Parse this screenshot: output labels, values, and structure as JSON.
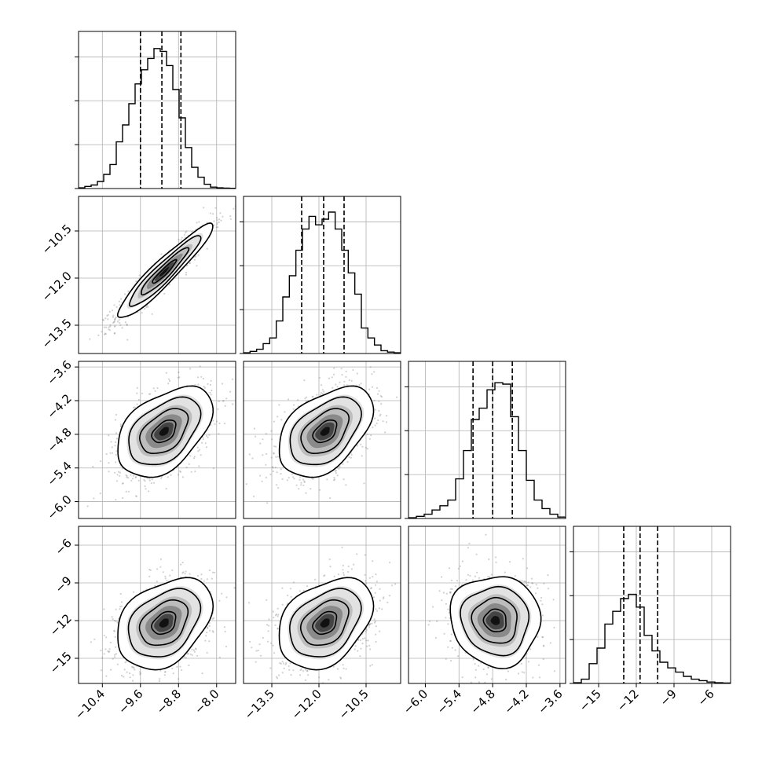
{
  "chart_data": {
    "type": "corner",
    "grid": true,
    "parameters": [
      {
        "xlim": [
          -10.9,
          -7.6
        ],
        "ticks": [
          -10.4,
          -9.6,
          -8.8,
          -8.0
        ],
        "tick_labels": [
          "−10.4",
          "−9.6",
          "−8.8",
          "−8.0"
        ],
        "quantiles": [
          -9.6,
          -9.15,
          -8.75
        ],
        "hist_bins": [
          0.5,
          1.5,
          2.5,
          5,
          10,
          17,
          33,
          45,
          60,
          74,
          84,
          92,
          99,
          97,
          87,
          70,
          50,
          29,
          15,
          8,
          3,
          1,
          0.5,
          0.3,
          0.2
        ]
      },
      {
        "xlim": [
          -14.4,
          -9.4
        ],
        "ticks": [
          -13.5,
          -12.0,
          -10.5
        ],
        "tick_labels": [
          "−13.5",
          "−12.0",
          "−10.5"
        ],
        "quantiles": [
          -12.55,
          -11.85,
          -11.2
        ],
        "hist_bins": [
          0.5,
          1.5,
          3,
          7,
          11,
          23,
          40,
          55,
          73,
          88,
          97,
          91,
          95,
          100,
          88,
          73,
          57,
          42,
          18,
          11,
          6,
          2,
          1,
          0.5
        ]
      },
      {
        "xlim": [
          -6.3,
          -3.5
        ],
        "ticks": [
          -6.0,
          -5.4,
          -4.8,
          -4.2,
          -3.6
        ],
        "tick_labels": [
          "−6.0",
          "−5.4",
          "−4.8",
          "−4.2",
          "−3.6"
        ],
        "quantiles": [
          -5.15,
          -4.8,
          -4.45
        ],
        "hist_bins": [
          0.5,
          1.5,
          3,
          6,
          9,
          13,
          28,
          48,
          70,
          78,
          91,
          96,
          95,
          72,
          48,
          27,
          13,
          7,
          3,
          1
        ]
      },
      {
        "xlim": [
          -17.0,
          -4.5
        ],
        "ticks": [
          -15,
          -12,
          -9,
          -6
        ],
        "tick_labels": [
          "−15",
          "−12",
          "−9",
          "−6"
        ],
        "quantiles": [
          -13.0,
          -11.7,
          -10.3
        ],
        "hist_bins": [
          0.5,
          3,
          14,
          25,
          42,
          51,
          60,
          63,
          54,
          34,
          23,
          15,
          11,
          8,
          5,
          3,
          2,
          1,
          0.5,
          0.3
        ]
      }
    ],
    "y_axes": [
      {
        "row": 1,
        "ticks": [
          -10.5,
          -12.0,
          -13.5
        ],
        "tick_labels": [
          "−10.5",
          "−12.0",
          "−13.5"
        ]
      },
      {
        "row": 2,
        "ticks": [
          -3.6,
          -4.2,
          -4.8,
          -5.4,
          -6.0
        ],
        "tick_labels": [
          "−3.6",
          "−4.2",
          "−4.8",
          "−5.4",
          "−6.0"
        ]
      },
      {
        "row": 3,
        "ticks": [
          -6,
          -9,
          -12,
          -15
        ],
        "tick_labels": [
          "−6",
          "−9",
          "−12",
          "−15"
        ]
      }
    ],
    "pairs": [
      {
        "row": 1,
        "col": 0,
        "center": [
          -9.1,
          -11.8
        ],
        "sigma": [
          0.5,
          0.75
        ],
        "corr": 0.94
      },
      {
        "row": 2,
        "col": 0,
        "center": [
          -9.1,
          -4.75
        ],
        "sigma": [
          0.5,
          0.4
        ],
        "corr": 0.45
      },
      {
        "row": 2,
        "col": 1,
        "center": [
          -11.8,
          -4.75
        ],
        "sigma": [
          0.75,
          0.4
        ],
        "corr": 0.45
      },
      {
        "row": 3,
        "col": 0,
        "center": [
          -9.1,
          -12.2
        ],
        "sigma": [
          0.5,
          1.8
        ],
        "corr": 0.35
      },
      {
        "row": 3,
        "col": 1,
        "center": [
          -11.8,
          -12.2
        ],
        "sigma": [
          0.75,
          1.8
        ],
        "corr": 0.35
      },
      {
        "row": 3,
        "col": 2,
        "center": [
          -4.75,
          -12.0
        ],
        "sigma": [
          0.4,
          1.8
        ],
        "corr": -0.05
      }
    ]
  }
}
